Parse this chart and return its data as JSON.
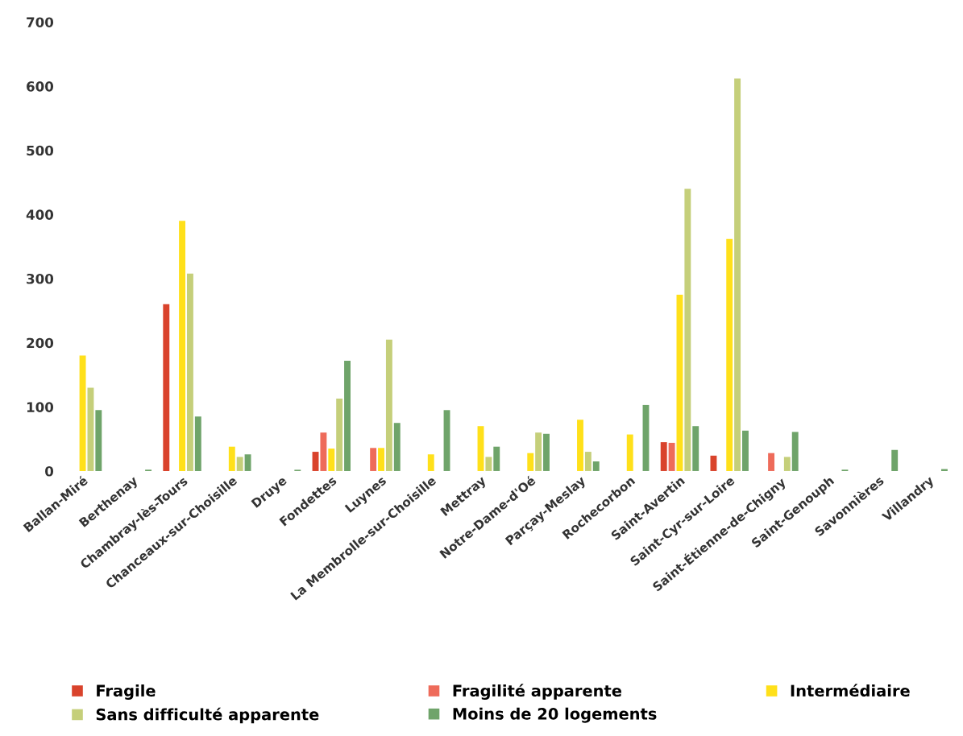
{
  "chart_data": {
    "type": "bar",
    "categories": [
      "Ballan-Miré",
      "Berthenay",
      "Chambray-lès-Tours",
      "Chanceaux-sur-Choisille",
      "Druye",
      "Fondettes",
      "Luynes",
      "La Membrolle-sur-Choisille",
      "Mettray",
      "Notre-Dame-d'Oé",
      "Parçay-Meslay",
      "Rochecorbon",
      "Saint-Avertin",
      "Saint-Cyr-sur-Loire",
      "Saint-Étienne-de-Chigny",
      "Saint-Genouph",
      "Savonnières",
      "Villandry"
    ],
    "series": [
      {
        "name": "Fragile",
        "color": "#d9432c",
        "values": [
          null,
          null,
          260,
          null,
          null,
          30,
          null,
          null,
          null,
          null,
          null,
          null,
          45,
          24,
          null,
          null,
          null,
          null
        ]
      },
      {
        "name": "Fragilité apparente",
        "color": "#ee6b5a",
        "values": [
          null,
          null,
          null,
          null,
          null,
          60,
          36,
          null,
          null,
          null,
          null,
          null,
          44,
          null,
          28,
          null,
          null,
          null
        ]
      },
      {
        "name": "Intermédiaire",
        "color": "#ffe01a",
        "values": [
          180,
          null,
          390,
          38,
          null,
          35,
          36,
          26,
          70,
          28,
          80,
          57,
          275,
          362,
          null,
          null,
          null,
          null
        ]
      },
      {
        "name": "Sans difficulté apparente",
        "color": "#c5cf7a",
        "values": [
          130,
          null,
          308,
          22,
          null,
          113,
          205,
          null,
          22,
          60,
          30,
          null,
          440,
          612,
          22,
          null,
          null,
          null
        ]
      },
      {
        "name": "Moins de 20 logements",
        "color": "#6fa46a",
        "values": [
          95,
          2,
          85,
          26,
          2,
          172,
          75,
          95,
          38,
          58,
          15,
          103,
          70,
          63,
          61,
          2,
          33,
          3
        ]
      }
    ],
    "ylim": [
      0,
      700
    ],
    "yticks": [
      0,
      100,
      200,
      300,
      400,
      500,
      600,
      700
    ],
    "legend": "bottom",
    "grid": false
  }
}
